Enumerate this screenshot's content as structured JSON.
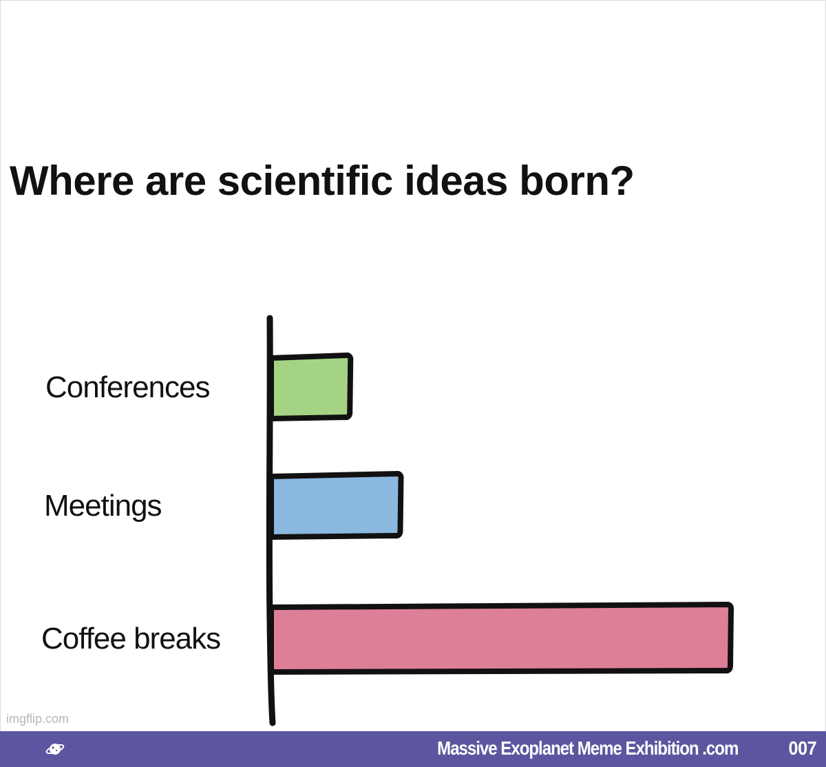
{
  "chart_data": {
    "type": "bar",
    "orientation": "horizontal",
    "title": "Where are scientific ideas born?",
    "categories": [
      "Conferences",
      "Meetings",
      "Coffee breaks"
    ],
    "values": [
      17,
      28,
      100
    ],
    "colors": [
      "#a4d483",
      "#8ab8df",
      "#de7f98"
    ],
    "xlim": [
      0,
      100
    ],
    "grid": false,
    "legend": "none"
  },
  "watermark": "imgflip.com",
  "footer": {
    "site": "Massive Exoplanet Meme Exhibition .com",
    "number": "007",
    "logo_icon": "planet-icon",
    "background": "#5b569f"
  }
}
